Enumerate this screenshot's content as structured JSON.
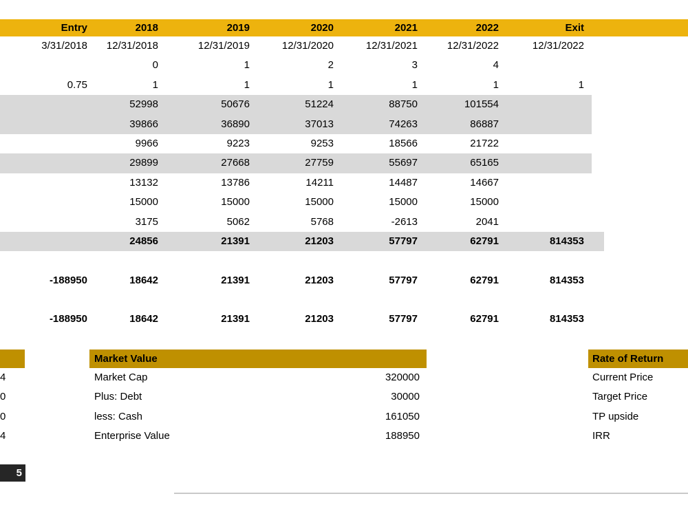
{
  "colors": {
    "header_band": "#EDB30E",
    "section_header": "#BF9000",
    "row_shade": "#D9D9D9",
    "black_cell_bg": "#262626",
    "divider": "#C9C9C9"
  },
  "header_band": {
    "labels": [
      "Entry",
      "2018",
      "2019",
      "2020",
      "2021",
      "2022",
      "Exit"
    ]
  },
  "grid": {
    "rows": [
      {
        "cells": [
          "3/31/2018",
          "12/31/2018",
          "12/31/2019",
          "12/31/2020",
          "12/31/2021",
          "12/31/2022",
          "12/31/2022"
        ]
      },
      {
        "cells": [
          "",
          "0",
          "1",
          "2",
          "3",
          "4",
          ""
        ]
      },
      {
        "cells": [
          "0.75",
          "1",
          "1",
          "1",
          "1",
          "1",
          "1"
        ]
      },
      {
        "cells": [
          "",
          "52998",
          "50676",
          "51224",
          "88750",
          "101554",
          ""
        ],
        "shade": "normal"
      },
      {
        "cells": [
          "",
          "39866",
          "36890",
          "37013",
          "74263",
          "86887",
          ""
        ],
        "shade": "normal"
      },
      {
        "cells": [
          "",
          "9966",
          "9223",
          "9253",
          "18566",
          "21722",
          ""
        ]
      },
      {
        "cells": [
          "",
          "29899",
          "27668",
          "27759",
          "55697",
          "65165",
          ""
        ],
        "shade": "normal"
      },
      {
        "cells": [
          "",
          "13132",
          "13786",
          "14211",
          "14487",
          "14667",
          ""
        ]
      },
      {
        "cells": [
          "",
          "15000",
          "15000",
          "15000",
          "15000",
          "15000",
          ""
        ]
      },
      {
        "cells": [
          "",
          "3175",
          "5062",
          "5768",
          "-2613",
          "2041",
          ""
        ]
      },
      {
        "cells": [
          "",
          "24856",
          "21391",
          "21203",
          "57797",
          "62791",
          "814353"
        ],
        "shade": "wide",
        "bold": true
      },
      {
        "spacer": true
      },
      {
        "cells": [
          "-188950",
          "18642",
          "21391",
          "21203",
          "57797",
          "62791",
          "814353"
        ],
        "bold": true
      },
      {
        "spacer": true
      },
      {
        "cells": [
          "-188950",
          "18642",
          "21391",
          "21203",
          "57797",
          "62791",
          "814353"
        ],
        "bold": true
      }
    ]
  },
  "market_value": {
    "title": "Market Value",
    "rows": [
      {
        "label": "Market Cap",
        "value": "320000"
      },
      {
        "label": "Plus: Debt",
        "value": "30000"
      },
      {
        "label": "less: Cash",
        "value": "161050"
      },
      {
        "label": "Enterprise Value",
        "value": "188950"
      }
    ]
  },
  "rate_of_return": {
    "title": "Rate of Return",
    "labels": [
      "Current Price",
      "Target Price",
      "TP upside",
      "IRR"
    ]
  },
  "left_edge": {
    "partial_values": [
      "4",
      "0",
      "0",
      "4"
    ],
    "black_cell_text": "5"
  }
}
